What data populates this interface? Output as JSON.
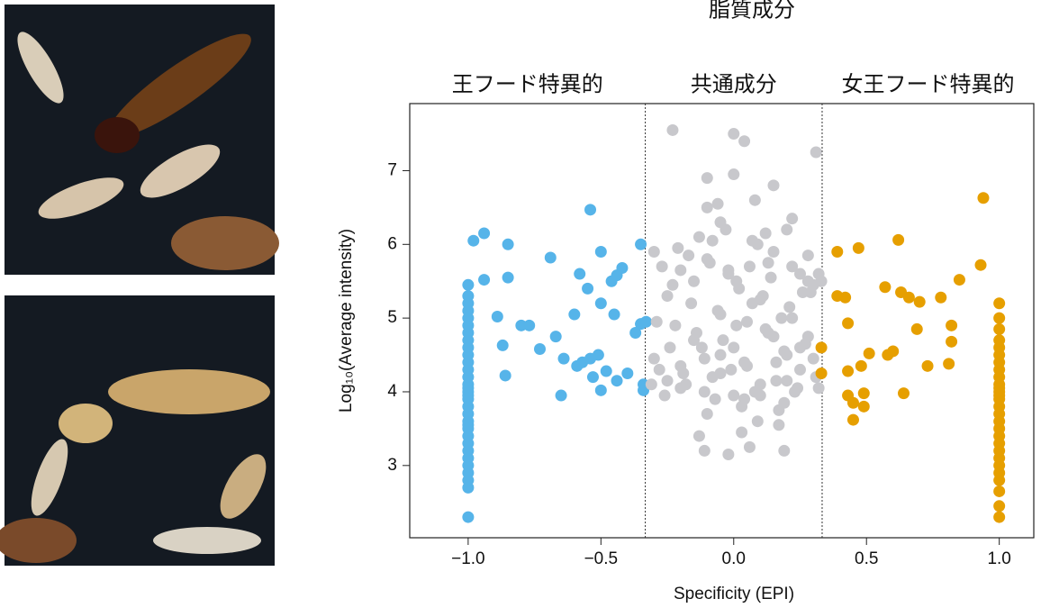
{
  "chart_data": {
    "type": "scatter",
    "title": "脂質成分",
    "x_label": "Specificity (EPI)",
    "y_label": "Log₁₀(Average intensity)",
    "xlim": [
      -1.22,
      1.13
    ],
    "ylim": [
      2.02,
      7.91
    ],
    "xticks": [
      {
        "value": -1,
        "label": "−1.0"
      },
      {
        "value": -0.5,
        "label": "−0.5"
      },
      {
        "value": 0,
        "label": "0.0"
      },
      {
        "value": 0.5,
        "label": "0.5"
      },
      {
        "value": 1,
        "label": "1.0"
      }
    ],
    "yticks": [
      3,
      4,
      5,
      6,
      7
    ],
    "vlines": [
      -0.333,
      0.333
    ],
    "grid": false,
    "series": [
      {
        "name": "王フード特異的",
        "color": "#56b4e9",
        "x": [
          -1,
          -1,
          -1,
          -1,
          -1,
          -1,
          -1,
          -1,
          -1,
          -1,
          -1,
          -1,
          -1,
          -1,
          -1,
          -1,
          -1,
          -1,
          -1,
          -1,
          -1,
          -1,
          -1,
          -1,
          -1,
          -1,
          -1,
          -1,
          -1,
          -1,
          -1,
          -1,
          -0.98,
          -0.94,
          -0.94,
          -0.89,
          -0.87,
          -0.86,
          -0.85,
          -0.85,
          -0.8,
          -0.77,
          -0.73,
          -0.69,
          -0.67,
          -0.65,
          -0.64,
          -0.6,
          -0.59,
          -0.58,
          -0.57,
          -0.55,
          -0.54,
          -0.54,
          -0.53,
          -0.51,
          -0.5,
          -0.5,
          -0.5,
          -0.48,
          -0.46,
          -0.45,
          -0.44,
          -0.44,
          -0.42,
          -0.4,
          -0.37,
          -0.35,
          -0.35,
          -0.34,
          -0.34,
          -0.33
        ],
        "y": [
          2.3,
          2.7,
          2.8,
          2.9,
          3.0,
          3.1,
          3.2,
          3.3,
          3.4,
          3.5,
          3.6,
          3.7,
          3.8,
          3.9,
          4.0,
          4.1,
          4.2,
          4.3,
          4.4,
          4.5,
          4.6,
          4.7,
          4.8,
          4.9,
          5.0,
          5.1,
          5.2,
          5.3,
          5.45,
          3.95,
          4.05,
          3.55,
          6.05,
          6.15,
          5.52,
          5.02,
          4.63,
          4.22,
          6.0,
          5.55,
          4.9,
          4.9,
          4.58,
          5.82,
          4.75,
          3.95,
          4.45,
          5.05,
          4.35,
          5.6,
          4.4,
          5.4,
          6.47,
          4.45,
          4.2,
          4.5,
          4.02,
          5.9,
          5.2,
          4.28,
          5.5,
          5.05,
          5.58,
          4.15,
          5.68,
          4.25,
          4.8,
          6.0,
          4.92,
          4.1,
          4.02,
          4.95
        ]
      },
      {
        "name": "共通成分",
        "color": "#c8c8cc",
        "x": [
          -0.23,
          0.0,
          0.04,
          0.31,
          -0.1,
          0.0,
          0.15,
          0.2,
          -0.1,
          0.08,
          -0.05,
          0.12,
          0.22,
          0.28,
          -0.3,
          -0.28,
          -0.25,
          -0.22,
          -0.2,
          -0.18,
          -0.15,
          -0.12,
          -0.1,
          -0.08,
          -0.06,
          -0.04,
          -0.02,
          0.0,
          0.02,
          0.04,
          0.06,
          0.08,
          0.1,
          0.12,
          0.14,
          0.16,
          0.18,
          0.2,
          0.22,
          0.24,
          0.26,
          0.28,
          0.3,
          0.32,
          -0.31,
          -0.27,
          -0.24,
          -0.21,
          -0.19,
          -0.16,
          -0.13,
          -0.11,
          -0.09,
          -0.07,
          -0.05,
          -0.03,
          -0.01,
          0.01,
          0.03,
          0.05,
          0.07,
          0.09,
          0.11,
          0.13,
          0.15,
          0.17,
          0.19,
          0.21,
          0.23,
          0.25,
          0.27,
          0.29,
          0.31,
          -0.29,
          -0.26,
          -0.23,
          -0.2,
          -0.17,
          -0.14,
          -0.11,
          -0.08,
          -0.05,
          -0.02,
          0.01,
          0.04,
          0.07,
          0.1,
          0.13,
          0.16,
          0.19,
          0.22,
          0.25,
          0.28,
          -0.3,
          -0.25,
          -0.2,
          -0.15,
          -0.1,
          -0.05,
          0.0,
          0.05,
          0.1,
          0.15,
          0.2,
          0.25,
          0.3,
          -0.13,
          -0.11,
          0.03,
          0.06,
          -0.02,
          0.17,
          0.19,
          -0.06,
          0.09,
          0.33,
          0.32
        ],
        "y": [
          7.55,
          7.5,
          7.4,
          7.25,
          6.9,
          6.95,
          6.8,
          6.2,
          6.5,
          6.6,
          6.3,
          6.15,
          6.35,
          5.85,
          5.9,
          4.3,
          5.3,
          4.9,
          5.65,
          4.1,
          5.5,
          4.6,
          5.8,
          4.2,
          5.1,
          4.7,
          5.6,
          3.95,
          5.4,
          4.4,
          5.7,
          4.0,
          5.25,
          4.85,
          5.55,
          4.15,
          5.0,
          4.5,
          5.7,
          4.05,
          5.35,
          4.75,
          5.45,
          5.6,
          4.1,
          5.7,
          4.6,
          5.95,
          4.25,
          5.2,
          6.1,
          4.45,
          5.75,
          3.9,
          5.05,
          6.2,
          4.3,
          5.5,
          3.8,
          4.95,
          6.05,
          3.6,
          5.3,
          4.8,
          5.9,
          3.75,
          4.55,
          5.15,
          4.0,
          5.6,
          4.65,
          5.35,
          4.2,
          4.95,
          3.95,
          5.45,
          4.35,
          5.85,
          4.8,
          4.0,
          6.05,
          4.5,
          5.65,
          4.9,
          3.9,
          5.2,
          4.1,
          5.75,
          4.4,
          3.85,
          5.0,
          4.6,
          5.5,
          4.45,
          4.15,
          4.05,
          4.7,
          3.7,
          4.25,
          4.6,
          4.35,
          3.95,
          4.75,
          4.15,
          4.3,
          4.45,
          3.4,
          3.2,
          3.45,
          3.25,
          3.15,
          3.55,
          3.2,
          6.55,
          6.0,
          5.5,
          4.05
        ]
      },
      {
        "name": "女王フード特異的",
        "color": "#e69f00",
        "x": [
          1,
          1,
          1,
          1,
          1,
          1,
          1,
          1,
          1,
          1,
          1,
          1,
          1,
          1,
          1,
          1,
          1,
          1,
          1,
          1,
          1,
          1,
          1,
          1,
          1,
          1,
          1,
          1,
          0.39,
          0.39,
          0.42,
          0.43,
          0.43,
          0.43,
          0.45,
          0.45,
          0.47,
          0.48,
          0.49,
          0.49,
          0.51,
          0.57,
          0.58,
          0.6,
          0.62,
          0.63,
          0.64,
          0.66,
          0.69,
          0.7,
          0.73,
          0.78,
          0.81,
          0.82,
          0.82,
          0.85,
          0.93,
          0.94,
          0.33,
          0.33
        ],
        "y": [
          2.3,
          2.45,
          2.65,
          2.8,
          2.9,
          3.0,
          3.1,
          3.2,
          3.3,
          3.4,
          3.5,
          3.6,
          3.7,
          3.8,
          3.9,
          4.0,
          4.1,
          4.2,
          4.3,
          4.4,
          4.5,
          4.6,
          4.7,
          4.85,
          5.0,
          5.2,
          3.95,
          4.05,
          5.9,
          5.3,
          5.28,
          4.93,
          4.28,
          3.95,
          3.62,
          3.85,
          5.95,
          4.35,
          3.98,
          3.8,
          4.52,
          5.42,
          4.5,
          4.55,
          6.06,
          5.35,
          3.98,
          5.28,
          4.85,
          5.22,
          4.35,
          5.28,
          4.38,
          4.68,
          4.9,
          5.52,
          5.72,
          6.63,
          4.6,
          4.25
        ]
      }
    ]
  }
}
